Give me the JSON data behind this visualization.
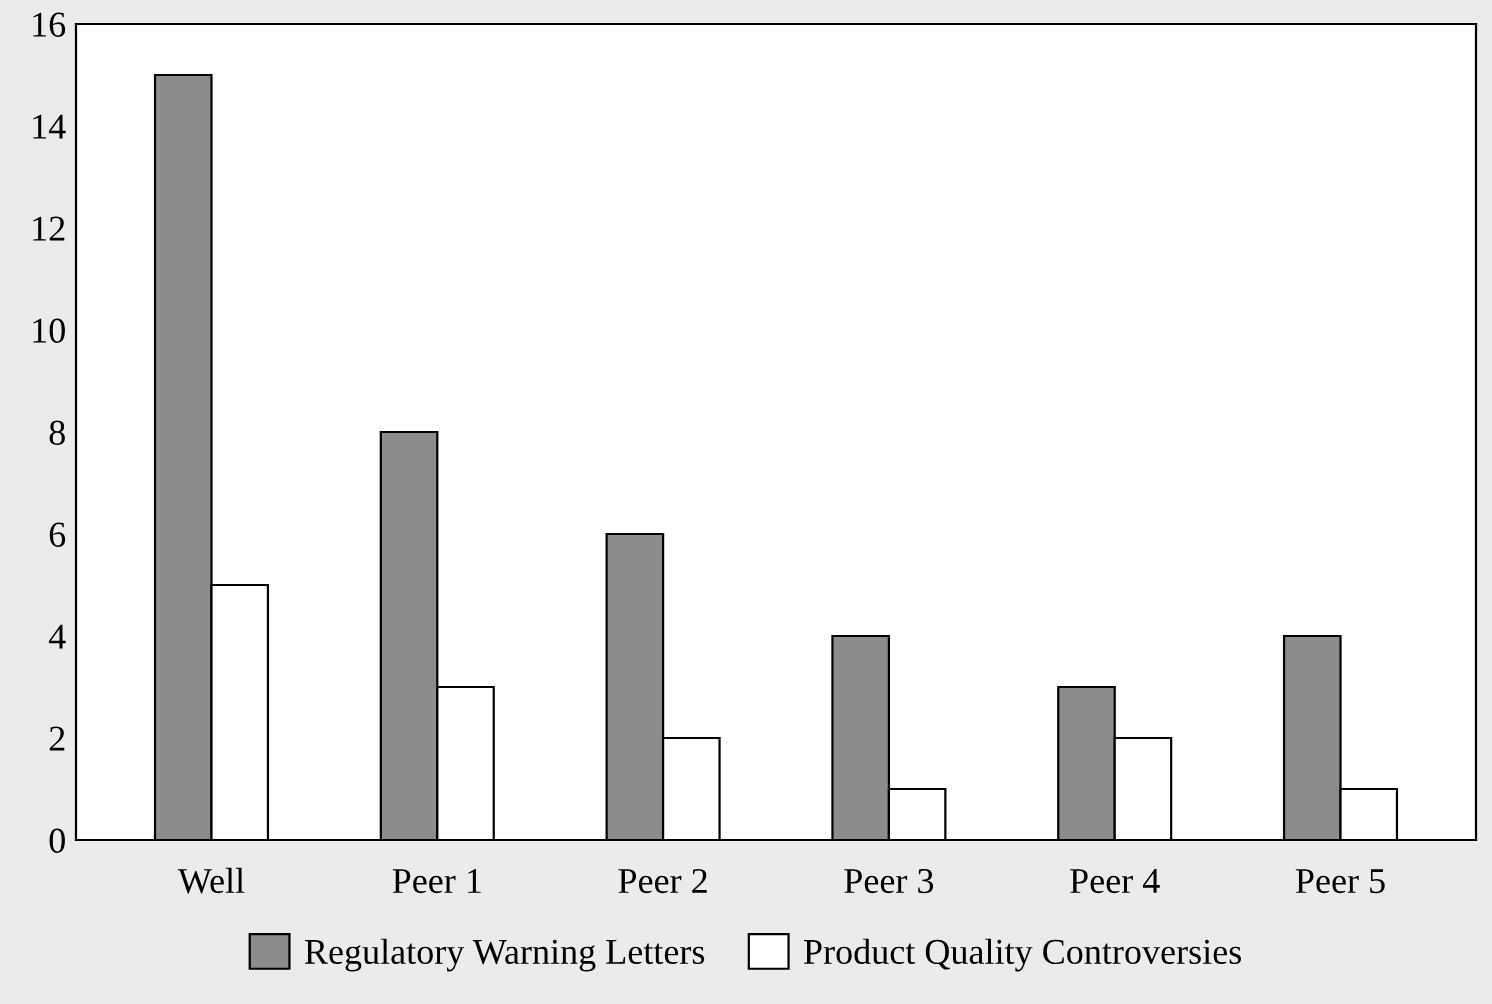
{
  "chart_data": {
    "type": "bar",
    "categories": [
      "Well",
      "Peer 1",
      "Peer 2",
      "Peer 3",
      "Peer 4",
      "Peer 5"
    ],
    "series": [
      {
        "name": "Regulatory Warning Letters",
        "color": "#8c8c8c",
        "values": [
          15,
          8,
          6,
          4,
          3,
          4
        ]
      },
      {
        "name": "Product Quality Controversies",
        "color": "#ffffff",
        "values": [
          5,
          3,
          2,
          1,
          2,
          1
        ]
      }
    ],
    "ylim": [
      0,
      16
    ],
    "yticks": [
      0,
      2,
      4,
      6,
      8,
      10,
      12,
      14,
      16
    ],
    "grid": false,
    "legend": "bottom"
  }
}
